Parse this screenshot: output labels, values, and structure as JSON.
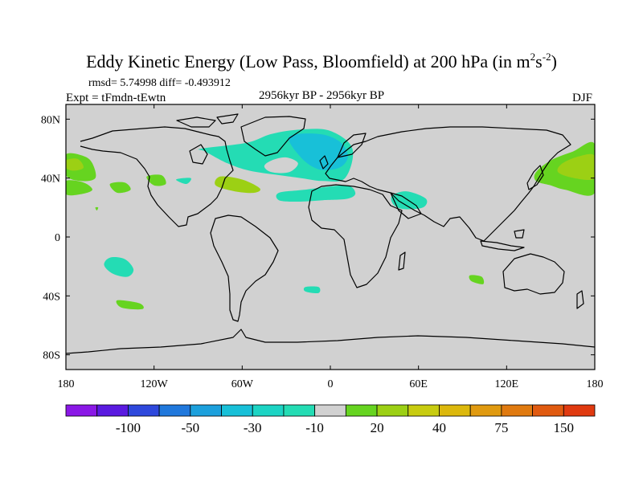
{
  "title_main": "Eddy Kinetic Energy (Low Pass, Bloomfield) at 200 hPa (in m",
  "title_sup1": "2",
  "title_s": "s",
  "title_sup2": "-2",
  "title_close": ")",
  "stats": "rmsd= 5.74998 diff= -0.493912",
  "experiment": "Expt = tFmdn-tEwtn",
  "period": "2956kyr BP - 2956kyr BP",
  "season": "DJF",
  "chart_data": {
    "type": "heatmap",
    "projection": "cylindrical-equidistant",
    "background_value_color": "#d1d1d1",
    "xlim": [
      -180,
      180
    ],
    "ylim": [
      -90,
      90
    ],
    "x_ticks": [
      -180,
      -120,
      -60,
      0,
      60,
      120,
      180
    ],
    "x_tick_labels": [
      "180",
      "120W",
      "60W",
      "0",
      "60E",
      "120E",
      "180"
    ],
    "y_ticks": [
      80,
      40,
      0,
      -40,
      -80
    ],
    "y_tick_labels": [
      "80N",
      "40N",
      "0",
      "40S",
      "80S"
    ],
    "colorbar": {
      "colors": [
        "#8a18e6",
        "#5a1ae0",
        "#2e48dc",
        "#2078dc",
        "#1ca0dc",
        "#18c0d8",
        "#1cd4c4",
        "#24dcb4",
        "#d1d1d1",
        "#66d420",
        "#9cd014",
        "#c8cc10",
        "#dcb80c",
        "#e09a10",
        "#e07a10",
        "#e05a10",
        "#e03a10"
      ],
      "labels": [
        "-100",
        "-50",
        "-30",
        "-10",
        "20",
        "40",
        "75",
        "150"
      ]
    },
    "regions": [
      {
        "name": "north-atlantic",
        "color": "#24dcb4",
        "lon": [
          -88,
          -57,
          -40,
          -20,
          0,
          15,
          10,
          -5,
          -20,
          -35,
          -55,
          -70,
          -85
        ],
        "lat": [
          60,
          64,
          70,
          73,
          72,
          60,
          40,
          38,
          40,
          42,
          45,
          50,
          58
        ]
      },
      {
        "name": "north-atlantic-core",
        "color": "#18c0d8",
        "lon": [
          -28,
          -8,
          6,
          12,
          6,
          -8,
          -20
        ],
        "lat": [
          68,
          70,
          65,
          55,
          47,
          46,
          54
        ]
      },
      {
        "name": "north-atlantic-hole",
        "color": "#d1d1d1",
        "lon": [
          -40,
          -30,
          -22,
          -28,
          -40,
          -45
        ],
        "lat": [
          52,
          54,
          50,
          44,
          44,
          48
        ]
      },
      {
        "name": "north-africa",
        "color": "#24dcb4",
        "lon": [
          -35,
          -18,
          10,
          17,
          12,
          -5,
          -22,
          -35
        ],
        "lat": [
          30,
          32,
          35,
          30,
          26,
          25,
          24,
          25
        ]
      },
      {
        "name": "arabia",
        "color": "#24dcb4",
        "lon": [
          42,
          52,
          65,
          63,
          50,
          43
        ],
        "lat": [
          28,
          31,
          26,
          20,
          19,
          22
        ]
      },
      {
        "name": "north-pacific-east",
        "color": "#66d420",
        "lon": [
          -180,
          -168,
          -162,
          -160,
          -170,
          -180
        ],
        "lat": [
          56,
          55,
          50,
          40,
          38,
          42
        ]
      },
      {
        "name": "north-pacific-east-inner",
        "color": "#9cd014",
        "lon": [
          -180,
          -172,
          -168,
          -175,
          -180
        ],
        "lat": [
          52,
          53,
          47,
          45,
          47
        ]
      },
      {
        "name": "north-pacific-west",
        "color": "#66d420",
        "lon": [
          140,
          150,
          165,
          180,
          180,
          160,
          150,
          140
        ],
        "lat": [
          44,
          52,
          58,
          63,
          30,
          32,
          35,
          38
        ]
      },
      {
        "name": "north-pacific-west-inner",
        "color": "#9cd014",
        "lon": [
          158,
          170,
          180,
          180,
          166,
          155
        ],
        "lat": [
          50,
          55,
          55,
          40,
          40,
          44
        ]
      },
      {
        "name": "pacific-band",
        "color": "#66d420",
        "lon": [
          -180,
          -168,
          -162,
          -170,
          -180
        ],
        "lat": [
          38,
          37,
          32,
          29,
          29
        ]
      },
      {
        "name": "west-atlantic",
        "color": "#9cd014",
        "lon": [
          -75,
          -60,
          -48,
          -52,
          -65,
          -78
        ],
        "lat": [
          41,
          39,
          33,
          30,
          31,
          35
        ]
      },
      {
        "name": "mid-pacific",
        "color": "#66d420",
        "lon": [
          -150,
          -140,
          -136,
          -145
        ],
        "lat": [
          36,
          37,
          32,
          30
        ]
      },
      {
        "name": "east-pacific",
        "color": "#66d420",
        "lon": [
          -125,
          -115,
          -112,
          -120
        ],
        "lat": [
          41,
          42,
          36,
          35
        ]
      },
      {
        "name": "south-pacific",
        "color": "#24dcb4",
        "lon": [
          -150,
          -140,
          -134,
          -138,
          -148,
          -154
        ],
        "lat": [
          -14,
          -15,
          -22,
          -27,
          -25,
          -19
        ]
      },
      {
        "name": "south-pacific-green",
        "color": "#66d420",
        "lon": [
          -145,
          -130,
          -128,
          -142
        ],
        "lat": [
          -43,
          -45,
          -49,
          -48
        ]
      },
      {
        "name": "south-atlantic",
        "color": "#24dcb4",
        "lon": [
          -17,
          -8,
          -8,
          -17
        ],
        "lat": [
          -34,
          -34,
          -38,
          -37
        ]
      },
      {
        "name": "indian-ocean",
        "color": "#66d420",
        "lon": [
          95,
          103,
          104,
          96
        ],
        "lat": [
          -26,
          -27,
          -32,
          -30
        ]
      },
      {
        "name": "small-1",
        "color": "#24dcb4",
        "lon": [
          -105,
          -95,
          -98
        ],
        "lat": [
          39,
          40,
          36
        ]
      },
      {
        "name": "small-2",
        "color": "#66d420",
        "lon": [
          -160,
          -158,
          -159
        ],
        "lat": [
          20,
          20,
          18
        ]
      }
    ]
  }
}
